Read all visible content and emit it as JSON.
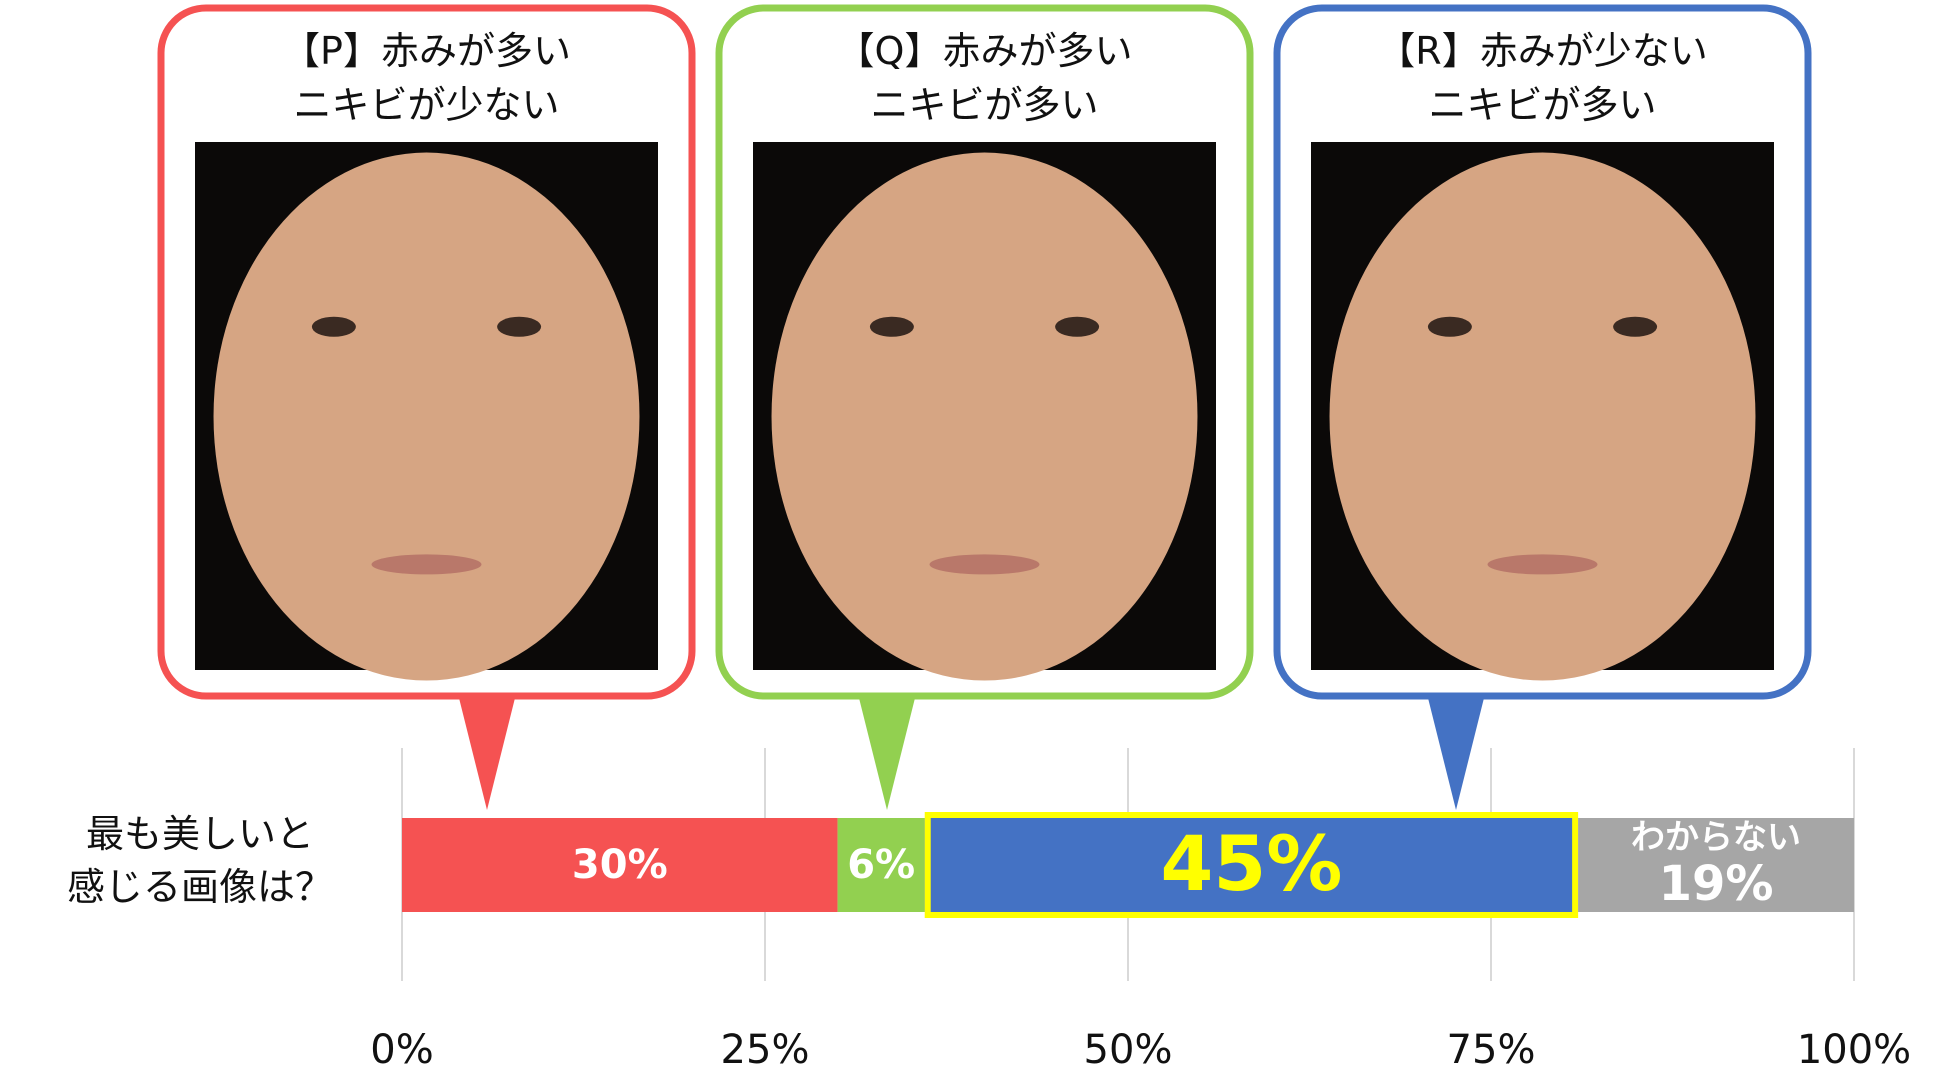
{
  "chart_data": {
    "type": "stacked_bar",
    "orientation": "horizontal",
    "categories": [
      "最も美しいと\n感じる画像は？"
    ],
    "series": [
      {
        "name": "【P】赤みが多い\nニキビが少ない",
        "color": "#f55252",
        "values": [
          30
        ],
        "value_labels": [
          "30%"
        ],
        "label_position": "callout"
      },
      {
        "name": "【Q】赤みが多い\nニキビが多い",
        "color": "#92d050",
        "values": [
          6
        ],
        "value_labels": [
          "6%"
        ],
        "label_position": "callout"
      },
      {
        "name": "【R】赤みが少ない\nニキビが多い",
        "color": "#4472c4",
        "values": [
          45
        ],
        "value_labels": [
          "45%"
        ],
        "label_position": "callout",
        "highlight": true
      },
      {
        "name": "わからない",
        "color": "#a6a6a6",
        "values": [
          19
        ],
        "value_labels": [
          "19%"
        ],
        "label_position": "inside"
      }
    ],
    "highlight_color": "#ffff00",
    "xlim": [
      0,
      100
    ],
    "xticks": [
      {
        "value": 0,
        "label": "0%"
      },
      {
        "value": 25,
        "label": "25%"
      },
      {
        "value": 50,
        "label": "50%"
      },
      {
        "value": 75,
        "label": "75%"
      },
      {
        "value": 100,
        "label": "100%"
      }
    ],
    "grid": true
  }
}
